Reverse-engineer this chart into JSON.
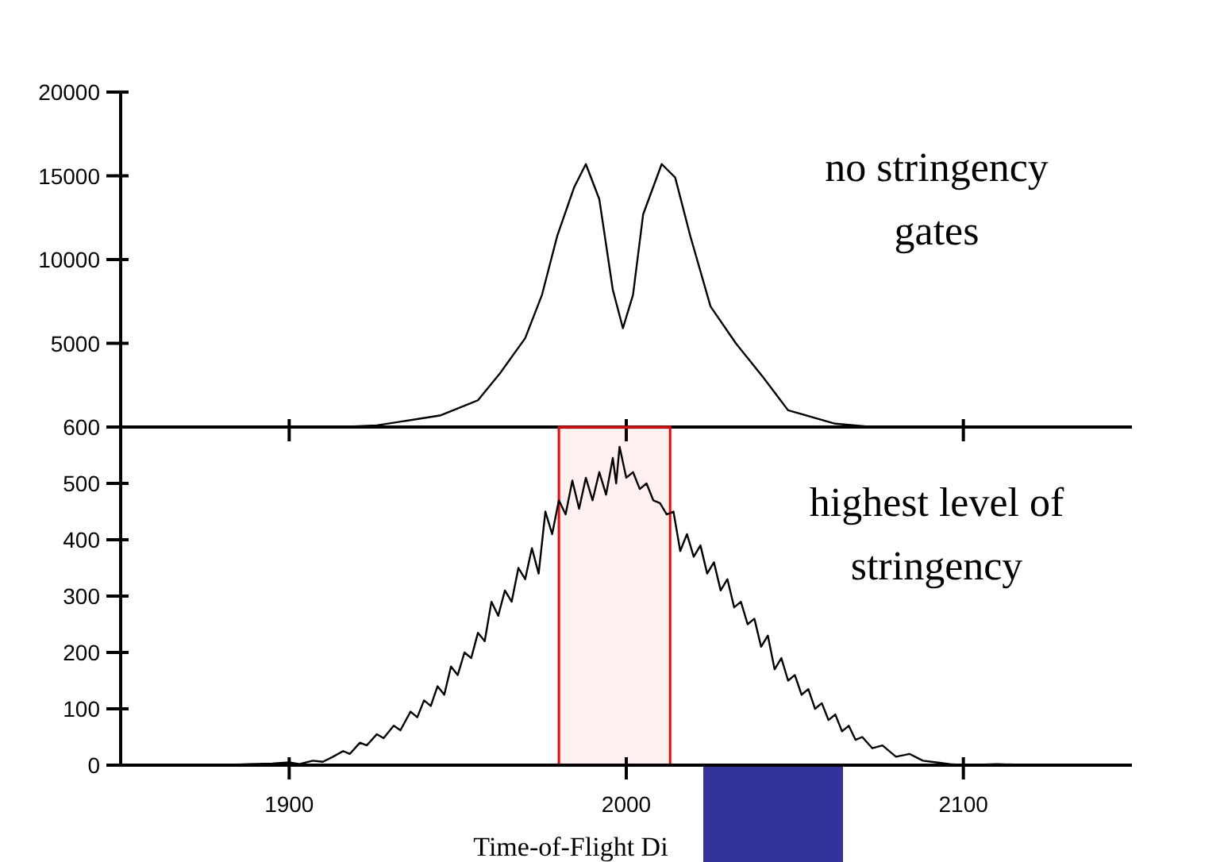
{
  "chart_data": [
    {
      "type": "line",
      "x": [
        1915,
        1926,
        1945,
        1956,
        1962.5,
        1970,
        1975,
        1979.5,
        1984.5,
        1988,
        1992,
        1996,
        1999,
        2002,
        2005,
        2010.5,
        2014.5,
        2019,
        2025,
        2032.5,
        2040.5,
        2048,
        2062,
        2073,
        2085
      ],
      "series": [
        {
          "color": "#000000",
          "values": [
            0,
            100,
            700,
            1600,
            3200,
            5300,
            7900,
            11400,
            14300,
            15700,
            13600,
            8200,
            5900,
            7900,
            12700,
            15700,
            14900,
            11400,
            7200,
            5000,
            3000,
            1000,
            200,
            0,
            0
          ]
        }
      ],
      "xlim": [
        1850,
        2150
      ],
      "xticks": [
        1900,
        2000,
        2100
      ],
      "ylim": [
        0,
        20000
      ],
      "yticks": [
        5000,
        10000,
        15000,
        20000
      ],
      "tick_labels": "y",
      "annotations": [
        "no stringency gates"
      ]
    },
    {
      "type": "line",
      "x": [
        1870,
        1880,
        1888,
        1895,
        1900,
        1903,
        1907,
        1910,
        1913,
        1916,
        1918,
        1921,
        1923,
        1926,
        1928,
        1931,
        1933,
        1936,
        1938,
        1940,
        1942,
        1944,
        1946,
        1948,
        1950,
        1952,
        1954,
        1956,
        1958,
        1960,
        1962,
        1964,
        1966,
        1968,
        1970,
        1972,
        1974,
        1976,
        1978,
        1980,
        1982,
        1984,
        1986,
        1988,
        1990,
        1992,
        1994,
        1996,
        1997,
        1998,
        2000,
        2002,
        2004,
        2006,
        2008,
        2010,
        2012,
        2014,
        2016,
        2018,
        2020,
        2022,
        2024,
        2026,
        2028,
        2030,
        2032,
        2034,
        2036,
        2038,
        2040,
        2042,
        2044,
        2046,
        2048,
        2050,
        2052,
        2054,
        2056,
        2058,
        2060,
        2062,
        2064,
        2066,
        2068,
        2070,
        2073,
        2076,
        2080,
        2084,
        2088,
        2092,
        2096,
        2100,
        2110,
        2120
      ],
      "series": [
        {
          "color": "#000000",
          "values": [
            0,
            0,
            2,
            3,
            5,
            2,
            8,
            6,
            15,
            25,
            20,
            40,
            35,
            55,
            48,
            70,
            62,
            95,
            85,
            115,
            105,
            140,
            125,
            175,
            160,
            200,
            190,
            235,
            220,
            290,
            265,
            310,
            290,
            350,
            330,
            385,
            340,
            450,
            410,
            470,
            445,
            505,
            455,
            510,
            470,
            520,
            480,
            545,
            500,
            565,
            510,
            520,
            490,
            500,
            470,
            465,
            445,
            450,
            380,
            410,
            370,
            390,
            340,
            360,
            310,
            330,
            280,
            290,
            250,
            260,
            210,
            230,
            170,
            190,
            150,
            160,
            125,
            135,
            100,
            110,
            80,
            90,
            60,
            70,
            45,
            50,
            30,
            35,
            15,
            20,
            8,
            5,
            2,
            0,
            2,
            0
          ]
        }
      ],
      "xlim": [
        1850,
        2150
      ],
      "xticks": [
        1900,
        2000,
        2100
      ],
      "ylim": [
        0,
        600
      ],
      "yticks": [
        0,
        100,
        200,
        300,
        400,
        500,
        600
      ],
      "xlabel": "Time-of-Flight Di",
      "annotations": [
        "highest level of stringency"
      ],
      "bands": [
        {
          "axis": "x",
          "from": 1980,
          "to": 2013,
          "color": "#ff0000"
        }
      ]
    }
  ]
}
